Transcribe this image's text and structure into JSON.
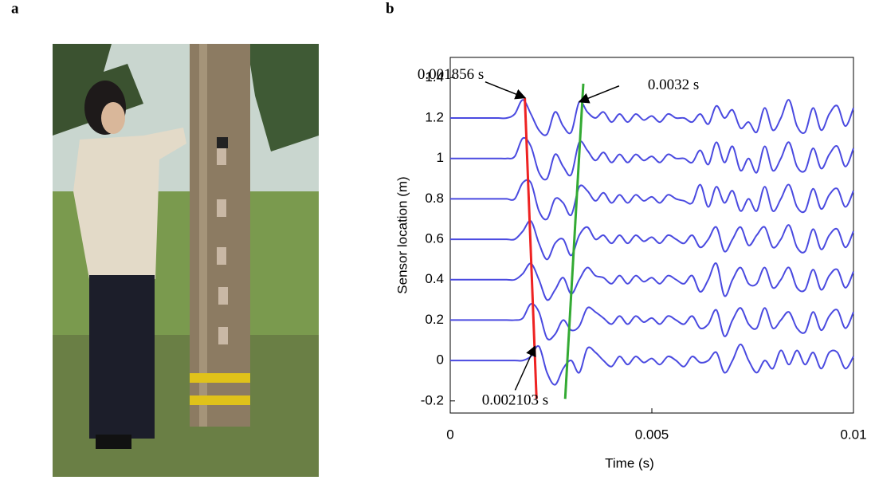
{
  "panel_labels": [
    "a",
    "b"
  ],
  "chart_data": {
    "type": "line",
    "xlabel": "Time (s)",
    "ylabel": "Sensor location (m)",
    "xlim": [
      0,
      0.01
    ],
    "ylim": [
      -0.26,
      1.5
    ],
    "xticks": [
      0,
      0.005,
      0.01
    ],
    "yticks": [
      -0.2,
      0,
      0.2,
      0.4,
      0.6,
      0.8,
      1,
      1.2,
      1.4
    ],
    "x": [
      0,
      0.0002,
      0.0004,
      0.0006,
      0.0008,
      0.001,
      0.0012,
      0.0014,
      0.0016,
      0.0018,
      0.002,
      0.0022,
      0.0024,
      0.0026,
      0.0028,
      0.003,
      0.0032,
      0.0034,
      0.0036,
      0.0038,
      0.004,
      0.0042,
      0.0044,
      0.0046,
      0.0048,
      0.005,
      0.0052,
      0.0054,
      0.0056,
      0.0058,
      0.006,
      0.0062,
      0.0064,
      0.0066,
      0.0068,
      0.007,
      0.0072,
      0.0074,
      0.0076,
      0.0078,
      0.008,
      0.0082,
      0.0084,
      0.0086,
      0.0088,
      0.009,
      0.0092,
      0.0094,
      0.0096,
      0.0098,
      0.01
    ],
    "series": [
      {
        "color": "#4a4ae0",
        "values": [
          1.2,
          1.2,
          1.2,
          1.2,
          1.2,
          1.2,
          1.2,
          1.2,
          1.22,
          1.29,
          1.22,
          1.14,
          1.12,
          1.23,
          1.16,
          1.13,
          1.28,
          1.23,
          1.2,
          1.23,
          1.18,
          1.22,
          1.18,
          1.22,
          1.19,
          1.21,
          1.18,
          1.22,
          1.2,
          1.2,
          1.18,
          1.22,
          1.17,
          1.26,
          1.2,
          1.24,
          1.15,
          1.18,
          1.13,
          1.25,
          1.14,
          1.2,
          1.29,
          1.16,
          1.13,
          1.25,
          1.14,
          1.22,
          1.26,
          1.16,
          1.25
        ]
      },
      {
        "color": "#4a4ae0",
        "values": [
          1,
          1,
          1,
          1,
          1,
          1,
          1,
          1,
          1.01,
          1.1,
          1.06,
          0.93,
          0.9,
          1.02,
          0.96,
          0.92,
          1.08,
          1.04,
          0.99,
          1.03,
          0.98,
          1.02,
          0.98,
          1.02,
          0.99,
          1.01,
          0.98,
          1.02,
          1,
          1,
          0.98,
          1.04,
          0.97,
          1.08,
          0.98,
          1.06,
          0.94,
          1.0,
          0.93,
          1.06,
          0.94,
          1.0,
          1.08,
          0.96,
          0.94,
          1.05,
          0.95,
          1.02,
          1.06,
          0.96,
          1.05
        ]
      },
      {
        "color": "#4a4ae0",
        "values": [
          0.8,
          0.8,
          0.8,
          0.8,
          0.8,
          0.8,
          0.8,
          0.8,
          0.8,
          0.88,
          0.88,
          0.74,
          0.7,
          0.8,
          0.78,
          0.72,
          0.86,
          0.84,
          0.79,
          0.83,
          0.78,
          0.82,
          0.78,
          0.82,
          0.79,
          0.81,
          0.78,
          0.82,
          0.8,
          0.79,
          0.78,
          0.87,
          0.76,
          0.86,
          0.78,
          0.84,
          0.74,
          0.8,
          0.74,
          0.86,
          0.74,
          0.8,
          0.87,
          0.76,
          0.74,
          0.85,
          0.75,
          0.82,
          0.85,
          0.76,
          0.84
        ]
      },
      {
        "color": "#4a4ae0",
        "values": [
          0.6,
          0.6,
          0.6,
          0.6,
          0.6,
          0.6,
          0.6,
          0.6,
          0.6,
          0.64,
          0.69,
          0.58,
          0.5,
          0.58,
          0.6,
          0.52,
          0.62,
          0.66,
          0.6,
          0.62,
          0.58,
          0.62,
          0.58,
          0.62,
          0.59,
          0.61,
          0.58,
          0.62,
          0.6,
          0.58,
          0.62,
          0.56,
          0.6,
          0.66,
          0.54,
          0.6,
          0.66,
          0.57,
          0.62,
          0.66,
          0.56,
          0.6,
          0.67,
          0.56,
          0.54,
          0.65,
          0.55,
          0.62,
          0.65,
          0.56,
          0.64
        ]
      },
      {
        "color": "#4a4ae0",
        "values": [
          0.4,
          0.4,
          0.4,
          0.4,
          0.4,
          0.4,
          0.4,
          0.4,
          0.4,
          0.43,
          0.48,
          0.4,
          0.3,
          0.35,
          0.41,
          0.33,
          0.4,
          0.46,
          0.42,
          0.41,
          0.38,
          0.42,
          0.38,
          0.42,
          0.39,
          0.41,
          0.38,
          0.42,
          0.4,
          0.38,
          0.42,
          0.34,
          0.4,
          0.48,
          0.32,
          0.4,
          0.46,
          0.38,
          0.38,
          0.46,
          0.36,
          0.4,
          0.46,
          0.36,
          0.35,
          0.45,
          0.35,
          0.42,
          0.45,
          0.36,
          0.44
        ]
      },
      {
        "color": "#4a4ae0",
        "values": [
          0.2,
          0.2,
          0.2,
          0.2,
          0.2,
          0.2,
          0.2,
          0.2,
          0.2,
          0.21,
          0.28,
          0.24,
          0.11,
          0.13,
          0.2,
          0.15,
          0.17,
          0.26,
          0.24,
          0.21,
          0.18,
          0.22,
          0.18,
          0.22,
          0.19,
          0.21,
          0.18,
          0.22,
          0.2,
          0.18,
          0.22,
          0.16,
          0.18,
          0.25,
          0.12,
          0.2,
          0.26,
          0.18,
          0.16,
          0.26,
          0.16,
          0.2,
          0.24,
          0.16,
          0.14,
          0.24,
          0.15,
          0.22,
          0.25,
          0.16,
          0.24
        ]
      },
      {
        "color": "#4a4ae0",
        "values": [
          0,
          0,
          0,
          0,
          0,
          0,
          0,
          0,
          0,
          0,
          0.02,
          0.07,
          -0.06,
          -0.12,
          -0.04,
          0,
          -0.06,
          0.06,
          0.04,
          0,
          -0.03,
          0.02,
          -0.02,
          0.02,
          -0.01,
          0.01,
          -0.02,
          0.02,
          0,
          -0.03,
          0.02,
          -0.01,
          0,
          0.04,
          -0.06,
          0,
          0.08,
          0,
          -0.06,
          0,
          -0.04,
          0.05,
          -0.02,
          0.05,
          -0.02,
          0.04,
          -0.04,
          0.04,
          0.04,
          -0.04,
          0.02
        ]
      }
    ],
    "lines": [
      {
        "color": "#ee2222",
        "x": [
          0.00185,
          0.00214
        ],
        "y": [
          1.3,
          -0.19
        ]
      },
      {
        "color": "#33aa33",
        "x": [
          0.0033,
          0.00285
        ],
        "y": [
          1.37,
          -0.19
        ]
      }
    ],
    "annotations": [
      {
        "text": "0.001856 s",
        "x": 0.001856,
        "y": 1.3
      },
      {
        "text": "0.0032 s",
        "x": 0.0032,
        "y": 1.28
      },
      {
        "text": "0.002103 s",
        "x": 0.002103,
        "y": 0.07
      }
    ]
  }
}
